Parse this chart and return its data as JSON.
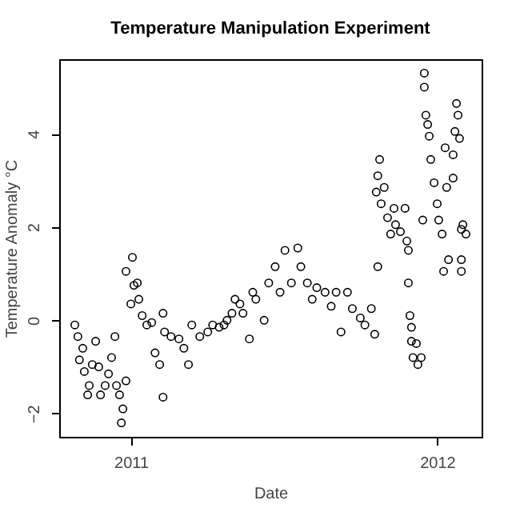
{
  "chart_data": {
    "type": "scatter",
    "title": "Temperature Manipulation Experiment",
    "xlabel": "Date",
    "ylabel": "Temperature Anomaly °C",
    "xlim": [
      2010.766,
      2012.145
    ],
    "xticks": [
      2011,
      2012
    ],
    "ylim": [
      -2.5,
      5.6
    ],
    "yticks": [
      -2,
      0,
      2,
      4
    ],
    "grid": false,
    "marker": "circle",
    "series": [
      {
        "color": "#000000",
        "x": [
          2010.817,
          2010.827,
          2010.832,
          2010.843,
          2010.848,
          2010.859,
          2010.864,
          2010.874,
          2010.885,
          2010.895,
          2010.901,
          2010.916,
          2010.927,
          2010.937,
          2010.948,
          2010.953,
          2010.963,
          2010.969,
          2010.974,
          2010.984,
          2010.984,
          2011.0,
          2011.005,
          2011.01,
          2011.021,
          2011.026,
          2011.037,
          2011.052,
          2011.068,
          2011.079,
          2011.094,
          2011.105,
          2011.105,
          2011.11,
          2011.131,
          2011.157,
          2011.173,
          2011.188,
          2011.199,
          2011.225,
          2011.251,
          2011.267,
          2011.288,
          2011.304,
          2011.314,
          2011.33,
          2011.34,
          2011.356,
          2011.366,
          2011.387,
          2011.398,
          2011.408,
          2011.435,
          2011.45,
          2011.471,
          2011.487,
          2011.503,
          2011.524,
          2011.545,
          2011.555,
          2011.576,
          2011.592,
          2011.607,
          2011.634,
          2011.654,
          2011.67,
          2011.686,
          2011.707,
          2011.723,
          2011.749,
          2011.764,
          2011.785,
          2011.796,
          2011.801,
          2011.806,
          2011.806,
          2011.812,
          2011.817,
          2011.827,
          2011.838,
          2011.848,
          2011.859,
          2011.864,
          2011.88,
          2011.895,
          2011.901,
          2011.906,
          2011.906,
          2011.911,
          2011.916,
          2011.916,
          2011.921,
          2011.932,
          2011.937,
          2011.948,
          2011.953,
          2011.958,
          2011.958,
          2011.963,
          2011.969,
          2011.974,
          2011.979,
          2011.99,
          2012.0,
          2012.005,
          2012.016,
          2012.021,
          2012.026,
          2012.031,
          2012.037,
          2012.052,
          2012.052,
          2012.058,
          2012.063,
          2012.068,
          2012.073,
          2012.079,
          2012.079,
          2012.079,
          2012.084,
          2012.094
        ],
        "values": [
          -0.1,
          -0.35,
          -0.85,
          -0.6,
          -1.1,
          -1.6,
          -1.4,
          -0.95,
          -0.45,
          -1.0,
          -1.6,
          -1.4,
          -1.15,
          -0.8,
          -0.35,
          -1.4,
          -1.6,
          -2.2,
          -1.9,
          -1.3,
          1.05,
          0.35,
          1.35,
          0.75,
          0.8,
          0.45,
          0.1,
          -0.1,
          -0.05,
          -0.7,
          -0.95,
          0.15,
          -1.65,
          -0.25,
          -0.35,
          -0.4,
          -0.6,
          -0.95,
          -0.1,
          -0.35,
          -0.25,
          -0.1,
          -0.15,
          -0.1,
          0,
          0.15,
          0.45,
          0.35,
          0.15,
          -0.4,
          0.6,
          0.45,
          0,
          0.8,
          1.15,
          0.6,
          1.5,
          0.8,
          1.55,
          1.15,
          0.8,
          0.45,
          0.7,
          0.6,
          0.3,
          0.6,
          -0.25,
          0.6,
          0.25,
          0.05,
          -0.1,
          0.25,
          -0.3,
          2.75,
          1.15,
          3.1,
          3.45,
          2.5,
          2.85,
          2.2,
          1.85,
          2.4,
          2.05,
          1.9,
          2.4,
          1.7,
          1.5,
          0.8,
          0.1,
          -0.15,
          -0.45,
          -0.8,
          -0.5,
          -0.95,
          -0.8,
          2.15,
          5.3,
          5.0,
          4.4,
          4.2,
          3.95,
          3.45,
          2.95,
          2.5,
          2.15,
          1.85,
          1.05,
          3.7,
          2.85,
          1.3,
          3.05,
          3.55,
          4.05,
          4.65,
          4.4,
          3.9,
          1.3,
          1.05,
          1.95,
          2.05,
          1.85
        ]
      }
    ]
  }
}
